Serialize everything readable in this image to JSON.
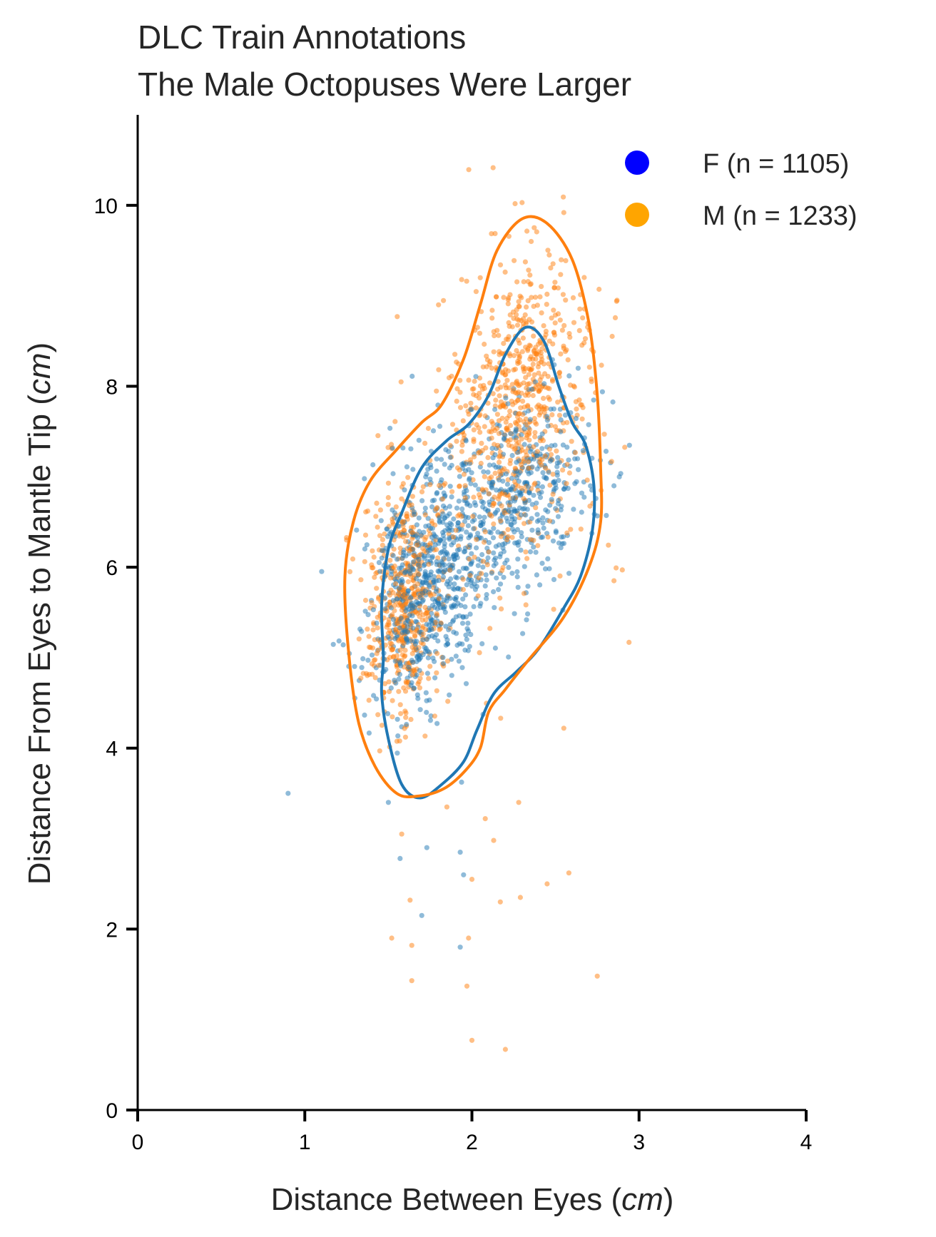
{
  "chart_data": {
    "type": "scatter",
    "title_lines": [
      "DLC Train Annotations",
      "The Male Octopuses Were Larger"
    ],
    "xlabel": "Distance Between Eyes (",
    "xlabel_unit": "cm",
    "xlabel_close": ")",
    "ylabel": "Distance From Eyes to Mantle Tip (",
    "ylabel_unit": "cm",
    "ylabel_close": ")",
    "xlim": [
      0,
      4
    ],
    "ylim": [
      0,
      11
    ],
    "x_ticks": [
      0,
      1,
      2,
      3,
      4
    ],
    "y_ticks": [
      0,
      2,
      4,
      6,
      8,
      10
    ],
    "x_tick_labels": [
      "0",
      "1",
      "2",
      "3",
      "4"
    ],
    "y_tick_labels": [
      "0",
      "2",
      "4",
      "6",
      "8",
      "10"
    ],
    "legend_position": "top-right",
    "grid": false,
    "series": [
      {
        "name": "F (n = 1105)",
        "legend_color": "#0000ff",
        "point_color": "#1f77b4",
        "n": 1105,
        "clusters": [
          {
            "cx": 1.75,
            "cy": 5.8,
            "sx": 0.2,
            "sy": 0.7,
            "rho": 0.3,
            "count": 700
          },
          {
            "cx": 2.3,
            "cy": 6.8,
            "sx": 0.22,
            "sy": 0.55,
            "rho": 0.2,
            "count": 405
          }
        ],
        "outliers": [
          [
            0.9,
            3.5
          ],
          [
            1.5,
            3.4
          ],
          [
            1.57,
            2.78
          ],
          [
            1.73,
            2.9
          ],
          [
            1.7,
            2.15
          ],
          [
            1.95,
            2.6
          ],
          [
            1.93,
            2.85
          ],
          [
            1.93,
            1.8
          ],
          [
            2.85,
            6.9
          ]
        ],
        "contour": [
          [
            1.47,
            5.0
          ],
          [
            1.46,
            5.6
          ],
          [
            1.5,
            6.2
          ],
          [
            1.58,
            6.6
          ],
          [
            1.7,
            7.1
          ],
          [
            1.85,
            7.4
          ],
          [
            1.98,
            7.58
          ],
          [
            2.1,
            7.9
          ],
          [
            2.2,
            8.35
          ],
          [
            2.32,
            8.65
          ],
          [
            2.43,
            8.5
          ],
          [
            2.52,
            8.0
          ],
          [
            2.6,
            7.6
          ],
          [
            2.68,
            7.35
          ],
          [
            2.73,
            6.9
          ],
          [
            2.72,
            6.4
          ],
          [
            2.65,
            5.9
          ],
          [
            2.55,
            5.55
          ],
          [
            2.4,
            5.1
          ],
          [
            2.27,
            4.85
          ],
          [
            2.13,
            4.6
          ],
          [
            2.03,
            4.2
          ],
          [
            1.95,
            3.85
          ],
          [
            1.82,
            3.6
          ],
          [
            1.69,
            3.45
          ],
          [
            1.58,
            3.6
          ],
          [
            1.5,
            4.1
          ],
          [
            1.46,
            4.6
          ]
        ]
      },
      {
        "name": "M (n = 1233)",
        "legend_color": "#ffa500",
        "point_color": "#ff7f0e",
        "n": 1233,
        "clusters": [
          {
            "cx": 1.6,
            "cy": 5.6,
            "sx": 0.11,
            "sy": 0.6,
            "rho": 0.1,
            "count": 500
          },
          {
            "cx": 2.3,
            "cy": 7.9,
            "sx": 0.2,
            "sy": 0.75,
            "rho": 0.2,
            "count": 600
          },
          {
            "cx": 2.1,
            "cy": 6.8,
            "sx": 0.35,
            "sy": 1.1,
            "rho": 0.4,
            "count": 133
          }
        ],
        "outliers": [
          [
            1.25,
            6.3
          ],
          [
            1.27,
            5.95
          ],
          [
            1.52,
            1.9
          ],
          [
            1.64,
            1.82
          ],
          [
            1.64,
            1.43
          ],
          [
            1.63,
            2.32
          ],
          [
            1.58,
            3.05
          ],
          [
            1.97,
            1.37
          ],
          [
            1.98,
            1.9
          ],
          [
            2.0,
            0.77
          ],
          [
            2.2,
            0.67
          ],
          [
            2.17,
            2.3
          ],
          [
            2.29,
            2.35
          ],
          [
            2.45,
            2.5
          ],
          [
            2.58,
            2.62
          ],
          [
            2.75,
            1.48
          ],
          [
            2.94,
            5.17
          ],
          [
            2.9,
            5.97
          ],
          [
            2.85,
            5.85
          ],
          [
            2.55,
            4.22
          ],
          [
            2.28,
            3.4
          ],
          [
            2.08,
            3.22
          ],
          [
            2.13,
            2.98
          ],
          [
            2.0,
            2.55
          ],
          [
            1.85,
            3.35
          ],
          [
            2.55,
            9.92
          ],
          [
            2.3,
            10.03
          ],
          [
            2.05,
            9.2
          ],
          [
            1.8,
            8.9
          ]
        ],
        "contour": [
          [
            1.26,
            5.1
          ],
          [
            1.24,
            5.9
          ],
          [
            1.29,
            6.5
          ],
          [
            1.39,
            6.95
          ],
          [
            1.55,
            7.3
          ],
          [
            1.7,
            7.6
          ],
          [
            1.82,
            7.8
          ],
          [
            1.95,
            8.3
          ],
          [
            2.05,
            8.9
          ],
          [
            2.15,
            9.5
          ],
          [
            2.3,
            9.85
          ],
          [
            2.45,
            9.8
          ],
          [
            2.6,
            9.4
          ],
          [
            2.7,
            8.7
          ],
          [
            2.75,
            7.9
          ],
          [
            2.77,
            7.1
          ],
          [
            2.77,
            6.5
          ],
          [
            2.7,
            6.0
          ],
          [
            2.55,
            5.45
          ],
          [
            2.35,
            5.0
          ],
          [
            2.2,
            4.65
          ],
          [
            2.1,
            4.4
          ],
          [
            2.05,
            4.0
          ],
          [
            1.96,
            3.75
          ],
          [
            1.83,
            3.55
          ],
          [
            1.68,
            3.47
          ],
          [
            1.55,
            3.5
          ],
          [
            1.42,
            3.8
          ],
          [
            1.32,
            4.3
          ]
        ]
      }
    ]
  }
}
